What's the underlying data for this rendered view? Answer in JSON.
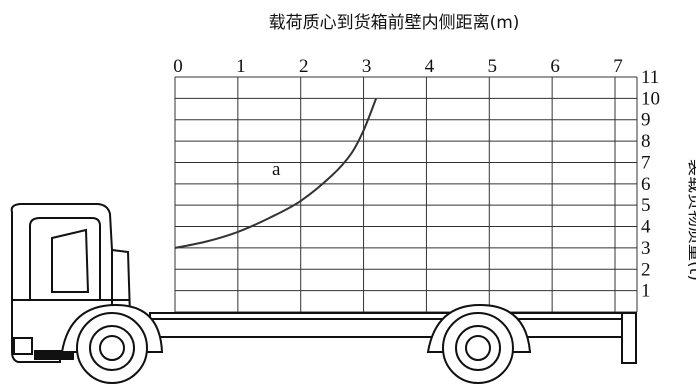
{
  "figure": {
    "title": "载荷质心到货箱前壁内侧距离(m)",
    "ylabel": "装载货物质量(t)",
    "curve_label": "a"
  },
  "chart_data": {
    "type": "line",
    "title": "载荷质心到货箱前壁内侧距离(m)",
    "xlabel": "载荷质心到货箱前壁内侧距离(m)",
    "ylabel": "装载货物质量(t)",
    "xlim": [
      0,
      7
    ],
    "ylim": [
      0,
      11
    ],
    "x_ticks": [
      "0",
      "1",
      "2",
      "3",
      "4",
      "5",
      "6",
      "7"
    ],
    "y_ticks": [
      "1",
      "2",
      "3",
      "4",
      "5",
      "6",
      "7",
      "8",
      "9",
      "10",
      "11"
    ],
    "grid": true,
    "series": [
      {
        "name": "a",
        "x": [
          0,
          0.5,
          1.0,
          1.5,
          2.0,
          2.5,
          2.8,
          3.0,
          3.2
        ],
        "y": [
          3.0,
          3.3,
          3.75,
          4.4,
          5.2,
          6.4,
          7.4,
          8.5,
          10.0
        ]
      }
    ]
  }
}
